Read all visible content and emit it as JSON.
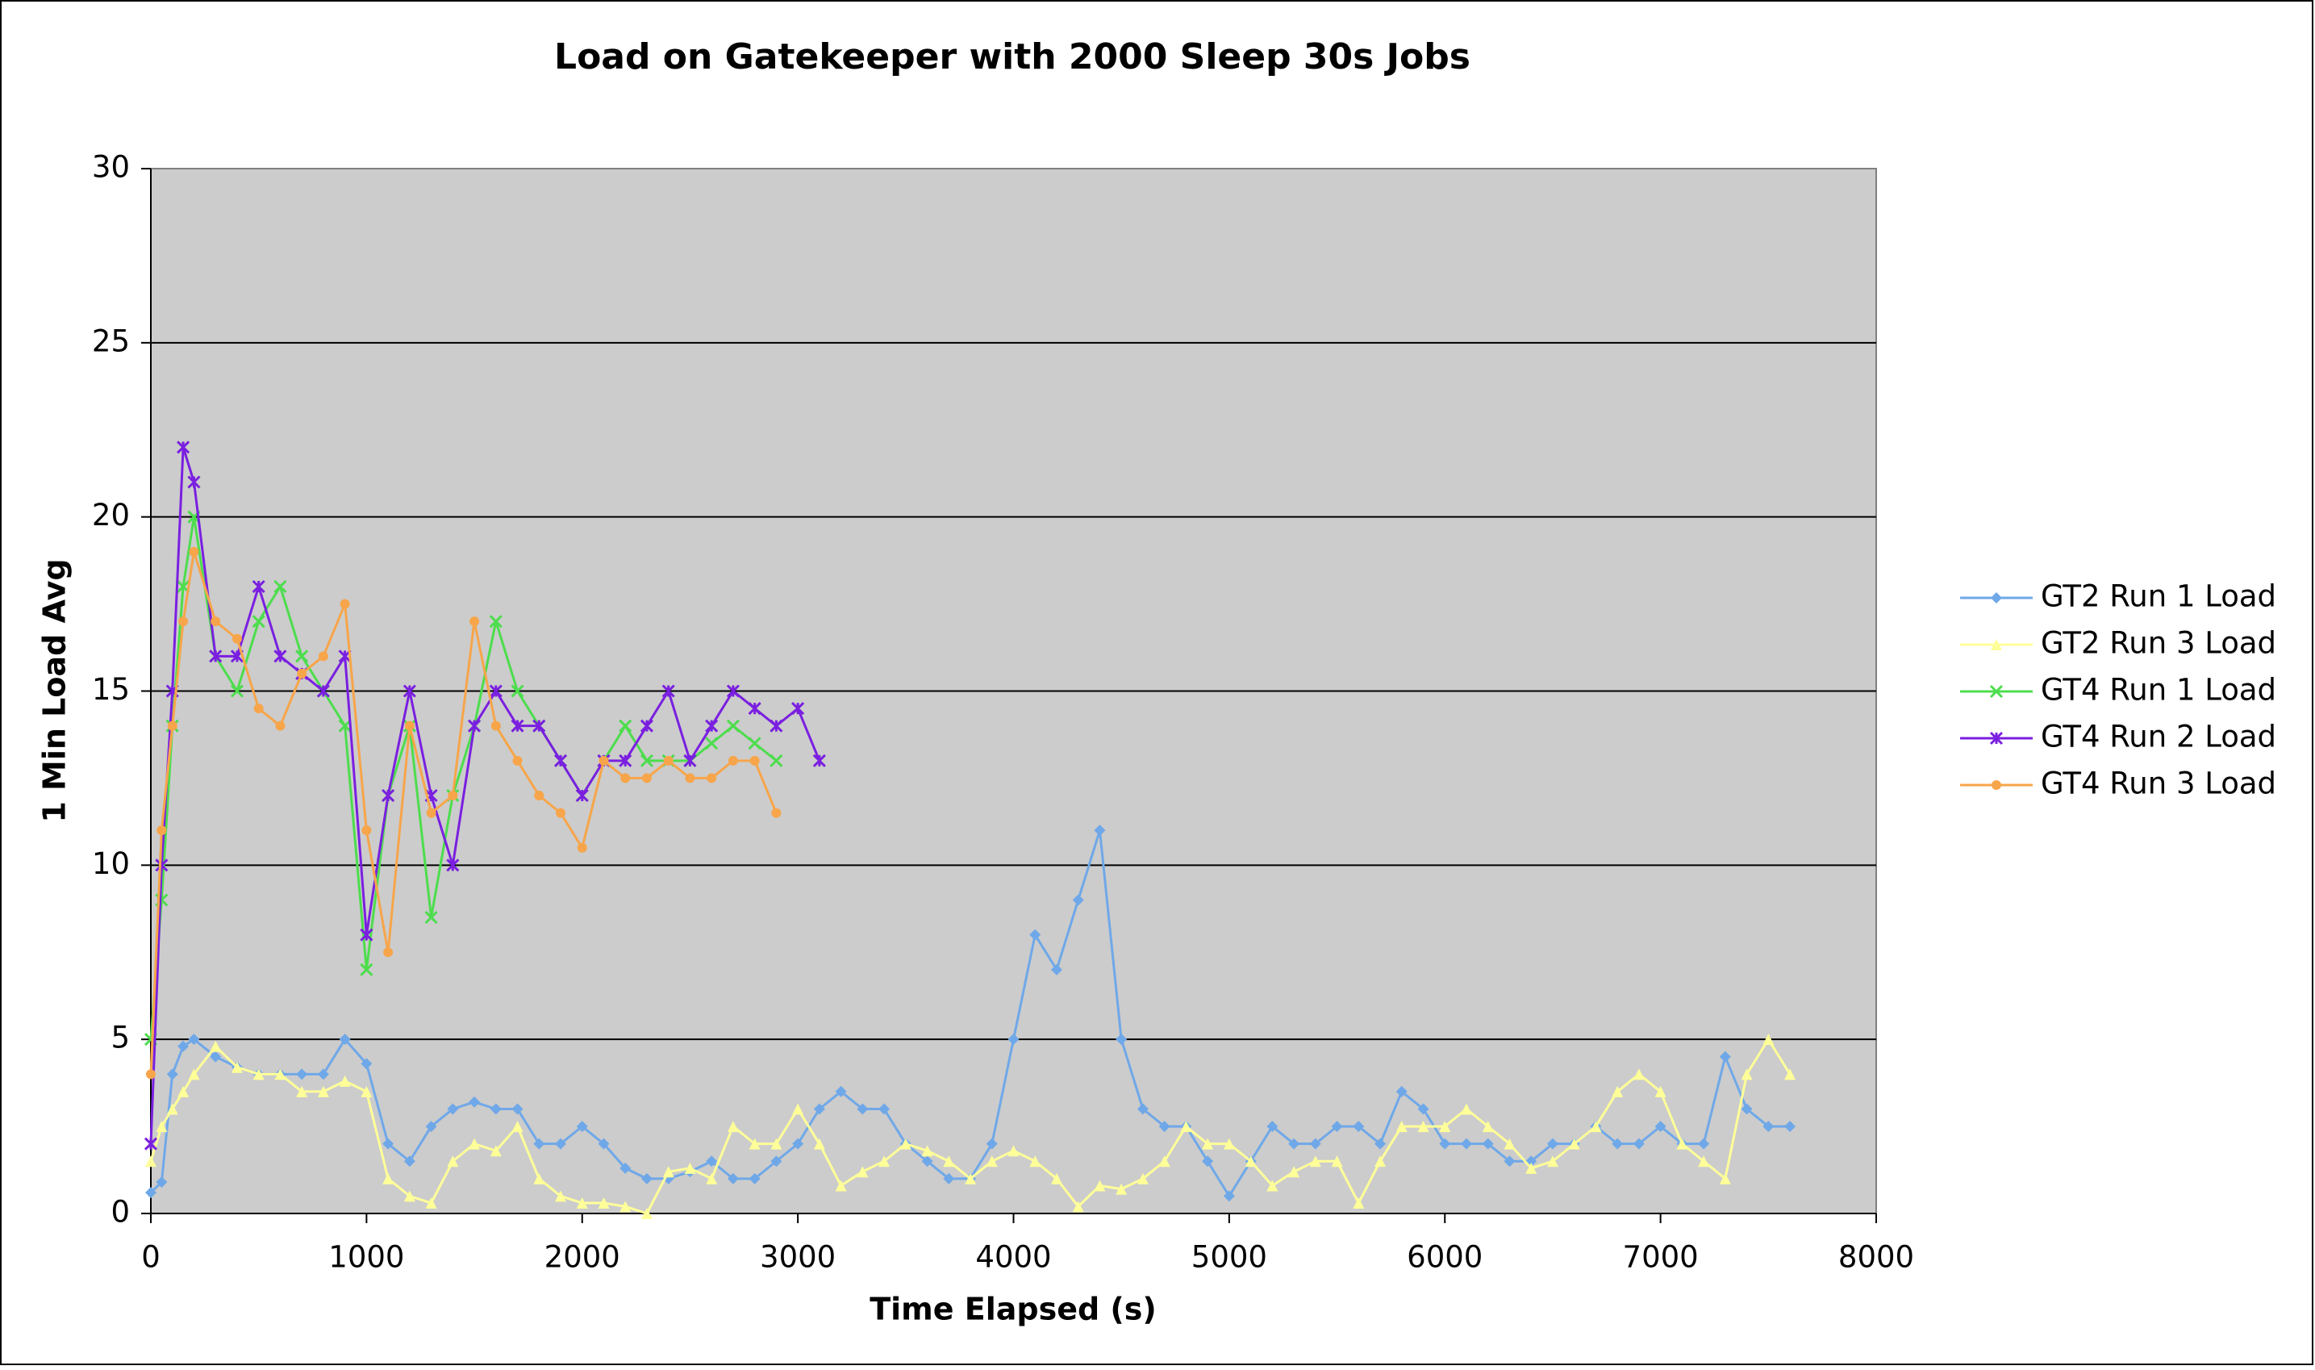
{
  "chart_data": {
    "type": "line",
    "title": "Load on Gatekeeper with 2000 Sleep 30s Jobs",
    "x_label": "Time Elapsed (s)",
    "y_label": "1 Min Load Avg",
    "x": [
      0,
      50,
      100,
      150,
      200,
      300,
      400,
      500,
      600,
      700,
      800,
      900,
      1000,
      1100,
      1200,
      1300,
      1400,
      1500,
      1600,
      1700,
      1800,
      1900,
      2000,
      2100,
      2200,
      2300,
      2400,
      2500,
      2600,
      2700,
      2800,
      2900,
      3000,
      3100,
      3200,
      3300,
      3400,
      3500,
      3600,
      3700,
      3800,
      3900,
      4000,
      4100,
      4200,
      4300,
      4400,
      4500,
      4600,
      4700,
      4800,
      4900,
      5000,
      5100,
      5200,
      5300,
      5400,
      5500,
      5600,
      5700,
      5800,
      5900,
      6000,
      6100,
      6200,
      6300,
      6400,
      6500,
      6600,
      6700,
      6800,
      6900,
      7000,
      7100,
      7200,
      7300,
      7400,
      7500,
      7600
    ],
    "series": [
      {
        "name": "GT2 Run 1 Load",
        "color": "#6fa8e8",
        "marker": "diamond",
        "values": [
          0.6,
          0.9,
          4,
          4.8,
          5,
          4.5,
          4.2,
          4,
          4,
          4,
          4,
          5,
          4.3,
          2,
          1.5,
          2.5,
          3,
          3.2,
          3,
          3,
          2,
          2,
          2.5,
          2,
          1.3,
          1,
          1,
          1.2,
          1.5,
          1,
          1,
          1.5,
          2,
          3,
          3.5,
          3,
          3,
          2,
          1.5,
          1,
          1,
          2,
          5,
          8,
          7,
          9,
          11,
          5,
          3,
          2.5,
          2.5,
          1.5,
          0.5,
          1.5,
          2.5,
          2,
          2,
          2.5,
          2.5,
          2,
          3.5,
          3,
          2,
          2,
          2,
          1.5,
          1.5,
          2,
          2,
          2.5,
          2,
          2,
          2.5,
          2,
          2,
          4.5,
          3,
          2.5,
          2.5
        ]
      },
      {
        "name": "GT2 Run 3 Load",
        "color": "#ffff99",
        "marker": "triangle",
        "values": [
          1.5,
          2.5,
          3,
          3.5,
          4,
          4.8,
          4.2,
          4,
          4,
          3.5,
          3.5,
          3.8,
          3.5,
          1,
          0.5,
          0.3,
          1.5,
          2,
          1.8,
          2.5,
          1,
          0.5,
          0.3,
          0.3,
          0.2,
          0,
          1.2,
          1.3,
          1,
          2.5,
          2,
          2,
          3,
          2,
          0.8,
          1.2,
          1.5,
          2,
          1.8,
          1.5,
          1,
          1.5,
          1.8,
          1.5,
          1,
          0.2,
          0.8,
          0.7,
          1,
          1.5,
          2.5,
          2,
          2,
          1.5,
          0.8,
          1.2,
          1.5,
          1.5,
          0.3,
          1.5,
          2.5,
          2.5,
          2.5,
          3,
          2.5,
          2,
          1.3,
          1.5,
          2,
          2.5,
          3.5,
          4,
          3.5,
          2,
          1.5,
          1,
          4,
          5,
          4
        ]
      },
      {
        "name": "GT4 Run 1 Load",
        "color": "#4ddd4d",
        "marker": "x",
        "values": [
          5,
          9,
          14,
          18,
          20,
          16,
          15,
          17,
          18,
          16,
          15,
          14,
          7,
          12,
          14,
          8.5,
          12,
          14,
          17,
          15,
          14,
          13,
          12,
          13,
          14,
          13,
          13,
          13,
          13.5,
          14,
          13.5,
          13,
          null,
          null,
          null,
          null,
          null,
          null,
          null,
          null,
          null,
          null,
          null,
          null,
          null,
          null,
          null,
          null,
          null,
          null,
          null,
          null,
          null,
          null,
          null,
          null,
          null,
          null,
          null,
          null,
          null,
          null,
          null,
          null,
          null,
          null,
          null,
          null,
          null,
          null,
          null,
          null,
          null,
          null,
          null,
          null,
          null,
          null,
          null
        ]
      },
      {
        "name": "GT4 Run 2 Load",
        "color": "#7a1fe0",
        "marker": "star",
        "values": [
          2,
          10,
          15,
          22,
          21,
          16,
          16,
          18,
          16,
          15.5,
          15,
          16,
          8,
          12,
          15,
          12,
          10,
          14,
          15,
          14,
          14,
          13,
          12,
          13,
          13,
          14,
          15,
          13,
          14,
          15,
          14.5,
          14,
          14.5,
          13,
          null,
          null,
          null,
          null,
          null,
          null,
          null,
          null,
          null,
          null,
          null,
          null,
          null,
          null,
          null,
          null,
          null,
          null,
          null,
          null,
          null,
          null,
          null,
          null,
          null,
          null,
          null,
          null,
          null,
          null,
          null,
          null,
          null,
          null,
          null,
          null,
          null,
          null,
          null,
          null,
          null,
          null,
          null,
          null,
          null
        ]
      },
      {
        "name": "GT4 Run 3 Load",
        "color": "#f7a54a",
        "marker": "circle",
        "values": [
          4,
          11,
          14,
          17,
          19,
          17,
          16.5,
          14.5,
          14,
          15.5,
          16,
          17.5,
          11,
          7.5,
          14,
          11.5,
          12,
          17,
          14,
          13,
          12,
          11.5,
          10.5,
          13,
          12.5,
          12.5,
          13,
          12.5,
          12.5,
          13,
          13,
          11.5,
          null,
          null,
          null,
          null,
          null,
          null,
          null,
          null,
          null,
          null,
          null,
          null,
          null,
          null,
          null,
          null,
          null,
          null,
          null,
          null,
          null,
          null,
          null,
          null,
          null,
          null,
          null,
          null,
          null,
          null,
          null,
          null,
          null,
          null,
          null,
          null,
          null,
          null,
          null,
          null,
          null,
          null,
          null,
          null,
          null,
          null,
          null
        ]
      }
    ],
    "xlim": [
      0,
      8000
    ],
    "xticks": [
      0,
      1000,
      2000,
      3000,
      4000,
      5000,
      6000,
      7000,
      8000
    ],
    "ylim": [
      0,
      30
    ],
    "yticks": [
      0,
      5,
      10,
      15,
      20,
      25,
      30
    ],
    "grid": true,
    "legend": "right"
  }
}
